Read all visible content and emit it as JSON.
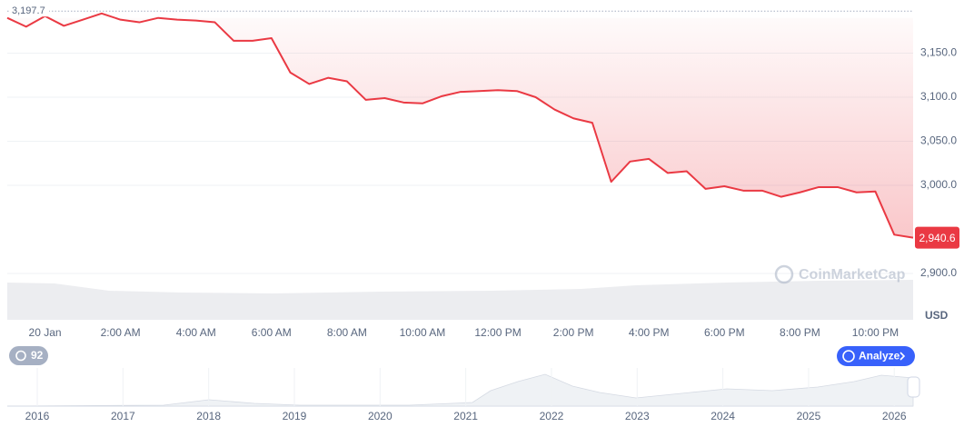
{
  "chart_data": {
    "type": "line",
    "categories": [
      null,
      null,
      "20 Jan",
      null,
      null,
      null,
      "2:00 AM",
      null,
      null,
      null,
      "4:00 AM",
      null,
      null,
      null,
      "6:00 AM",
      null,
      null,
      null,
      "8:00 AM",
      null,
      null,
      null,
      "10:00 AM",
      null,
      null,
      null,
      "12:00 PM",
      null,
      null,
      null,
      "2:00 PM",
      null,
      null,
      null,
      "4:00 PM",
      null,
      null,
      null,
      "6:00 PM",
      null,
      null,
      null,
      "8:00 PM",
      null,
      null,
      null,
      "10:00 PM",
      null,
      null
    ],
    "values": [
      3190,
      3180,
      3192,
      3181,
      3188,
      3195,
      3188,
      3185,
      3190,
      3188,
      3187,
      3185,
      3164,
      3164,
      3167,
      3128,
      3115,
      3122,
      3118,
      3097,
      3099,
      3094,
      3093,
      3101,
      3106,
      3107,
      3108,
      3107,
      3100,
      3086,
      3076,
      3071,
      3004,
      3027,
      3030,
      3014,
      3016,
      2996,
      2999,
      2994,
      2994,
      2987,
      2992,
      2998,
      2998,
      2992,
      2993,
      2944,
      2940.6
    ],
    "color": "#ea3943",
    "ylim": [
      2850,
      3200
    ],
    "yticks": [
      {
        "value": 2900,
        "label": "2,900.0"
      },
      {
        "value": 3000,
        "label": "3,000.0"
      },
      {
        "value": 3050,
        "label": "3,050.0"
      },
      {
        "value": 3100,
        "label": "3,100.0"
      },
      {
        "value": 3150,
        "label": "3,150.0"
      }
    ],
    "grid": true,
    "high": {
      "value": 3197.7,
      "label": "3,197.7"
    },
    "last": {
      "value": 2940.6,
      "label": "2,940.6"
    },
    "currency": "USD",
    "navigator": {
      "xlim": [
        2015.65,
        2026.22
      ],
      "xticks": [
        2016,
        2017,
        2018,
        2019,
        2020,
        2021,
        2022,
        2023,
        2024,
        2025,
        2026
      ]
    }
  },
  "ui": {
    "watermark": "CoinMarketCap",
    "badge": 92,
    "button": "Analyze"
  }
}
